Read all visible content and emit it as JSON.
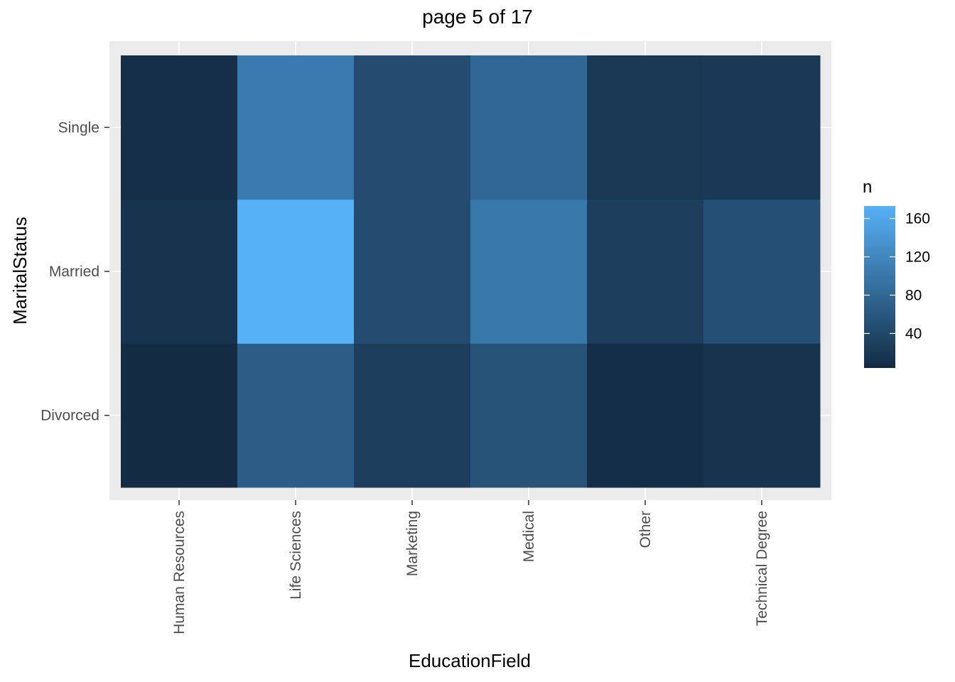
{
  "chart_data": {
    "type": "heatmap",
    "title": "page 5 of 17",
    "xlabel": "EducationField",
    "ylabel": "MaritalStatus",
    "x_categories": [
      "Human Resources",
      "Life Sciences",
      "Marketing",
      "Medical",
      "Other",
      "Technical Degree"
    ],
    "y_categories": [
      "Divorced",
      "Married",
      "Single"
    ],
    "values": [
      [
        4,
        67,
        27,
        55,
        8,
        14
      ],
      [
        14,
        173,
        46,
        101,
        28,
        50
      ],
      [
        9,
        104,
        46,
        80,
        20,
        22
      ]
    ],
    "legend": {
      "title": "n",
      "ticks": [
        40,
        80,
        120,
        160
      ],
      "range": [
        4,
        173
      ],
      "low_color": "#132B43",
      "high_color": "#56B1F7",
      "placement": "right"
    },
    "grid": true,
    "panel_background": "#EBEBEB"
  }
}
